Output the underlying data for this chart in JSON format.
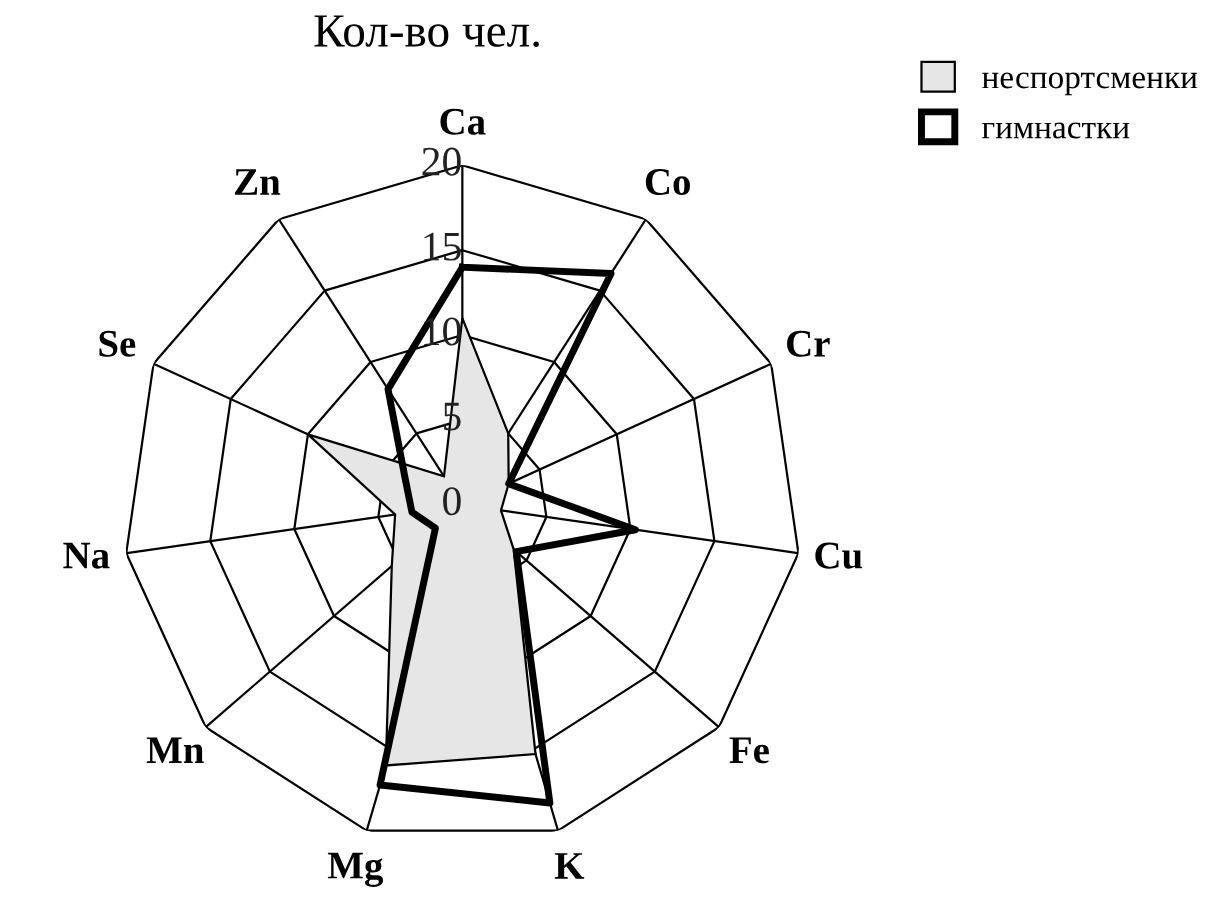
{
  "chart_data": {
    "type": "radar",
    "title": "Кол-во чел.",
    "categories": [
      "Ca",
      "Co",
      "Cr",
      "Cu",
      "Fe",
      "K",
      "Mg",
      "Mn",
      "Na",
      "Se",
      "Zn"
    ],
    "ylim": [
      0,
      20
    ],
    "yticks": [
      0,
      5,
      10,
      15,
      20
    ],
    "grid": true,
    "legend": "top right",
    "series": [
      {
        "name": "неспортсменки",
        "color": "#e6e6e6",
        "values": [
          11,
          5,
          3,
          2.3,
          4,
          15.3,
          16,
          5.5,
          4,
          10,
          2
        ]
      },
      {
        "name": "гимнастки",
        "color": "#000000",
        "values": [
          14,
          16.2,
          3,
          10.3,
          4.2,
          18.3,
          17.2,
          2.1,
          3,
          3.7,
          8.1
        ]
      }
    ]
  }
}
